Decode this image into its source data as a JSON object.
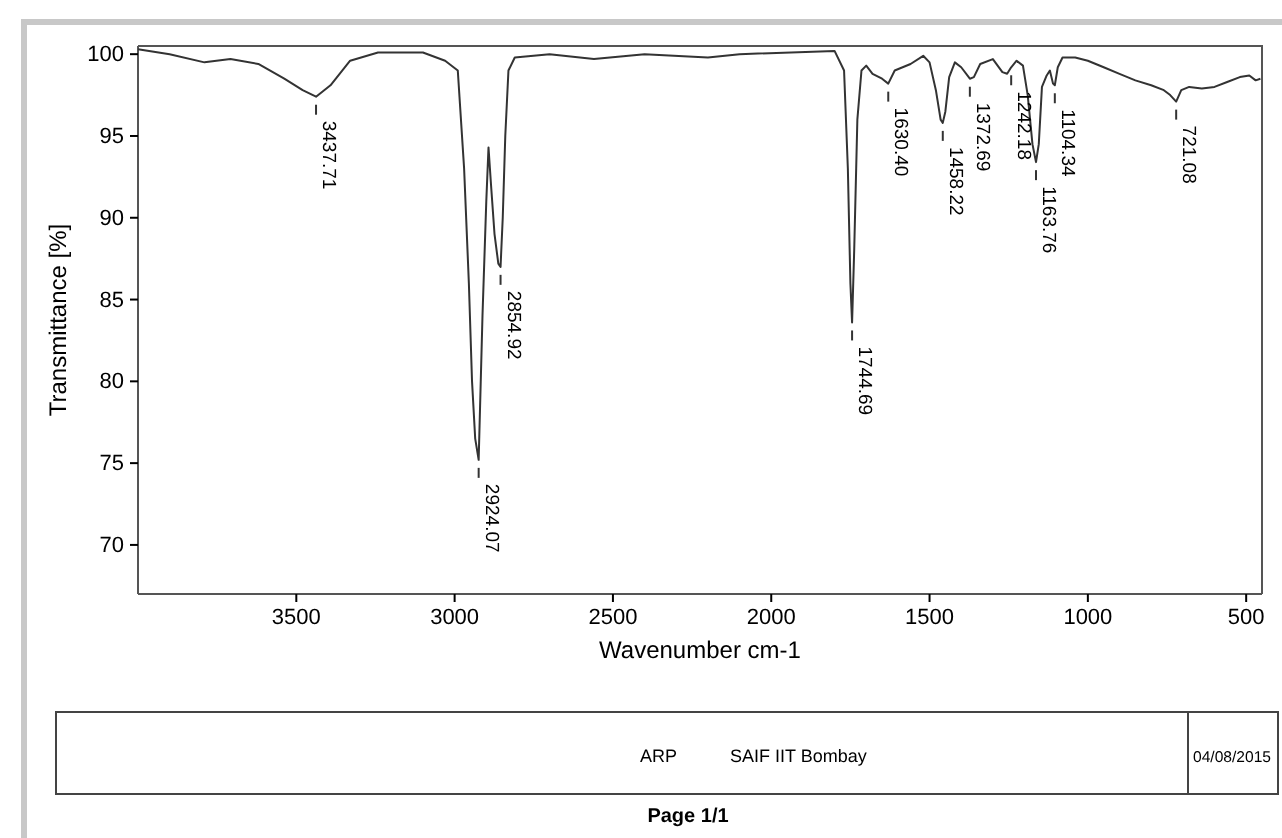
{
  "chart_data": {
    "type": "line",
    "xlabel": "Wavenumber cm-1",
    "ylabel": "Transmittance [%]",
    "xlim": [
      4000,
      450
    ],
    "ylim": [
      67,
      100.5
    ],
    "xticks": [
      3500,
      3000,
      2500,
      2000,
      1500,
      1000,
      500
    ],
    "yticks": [
      70,
      75,
      80,
      85,
      90,
      95,
      100
    ],
    "grid": false,
    "series": [
      {
        "color": "#333333",
        "x": [
          4000,
          3900,
          3790,
          3708,
          3620,
          3538,
          3480,
          3437.71,
          3392,
          3330,
          3242,
          3100,
          3030,
          2990,
          2970,
          2955,
          2945,
          2935,
          2924.07,
          2912,
          2900,
          2893,
          2885,
          2874,
          2862,
          2854.92,
          2848,
          2840,
          2830,
          2810,
          2700,
          2560,
          2400,
          2200,
          2100,
          1800,
          1770,
          1758,
          1750,
          1744.69,
          1738,
          1728,
          1715,
          1700,
          1680,
          1650,
          1630.4,
          1610,
          1560,
          1520,
          1500,
          1480,
          1465,
          1458.22,
          1450,
          1438,
          1420,
          1400,
          1372.69,
          1360,
          1340,
          1300,
          1270,
          1255,
          1242.18,
          1225,
          1205,
          1190,
          1175,
          1163.76,
          1155,
          1145,
          1130,
          1120,
          1110,
          1104.34,
          1095,
          1080,
          1040,
          1000,
          950,
          900,
          850,
          800,
          760,
          740,
          721.08,
          705,
          680,
          640,
          600,
          560,
          520,
          490,
          470,
          455
        ],
        "values": [
          100.3,
          100,
          99.5,
          99.7,
          99.4,
          98.5,
          97.8,
          97.4,
          98.1,
          99.6,
          100.1,
          100.1,
          99.6,
          99,
          93,
          86,
          80,
          76.5,
          75.2,
          84,
          91,
          94.3,
          92,
          89,
          87.2,
          87,
          90,
          95,
          99,
          99.8,
          100,
          99.7,
          100,
          99.8,
          100,
          100.2,
          99,
          93,
          86,
          83.6,
          88,
          96,
          99,
          99.3,
          98.8,
          98.5,
          98.2,
          99,
          99.4,
          99.9,
          99.5,
          97.8,
          96,
          95.8,
          96.5,
          98.6,
          99.5,
          99.2,
          98.5,
          98.6,
          99.4,
          99.7,
          98.9,
          98.8,
          99.2,
          99.6,
          99.3,
          97.5,
          94.5,
          93.4,
          94.5,
          98,
          98.7,
          99,
          98.2,
          98.1,
          99.2,
          99.8,
          99.8,
          99.6,
          99.2,
          98.8,
          98.4,
          98.1,
          97.8,
          97.5,
          97.1,
          97.8,
          98,
          97.9,
          98,
          98.3,
          98.6,
          98.7,
          98.4,
          98.5
        ]
      }
    ],
    "annotations": [
      {
        "text": "3437.71",
        "x": 3437.71,
        "y": 97.4
      },
      {
        "text": "2924.07",
        "x": 2924.07,
        "y": 75.2
      },
      {
        "text": "2854.92",
        "x": 2854.92,
        "y": 87
      },
      {
        "text": "1744.69",
        "x": 1744.69,
        "y": 83.6
      },
      {
        "text": "1630.40",
        "x": 1630.4,
        "y": 98.2
      },
      {
        "text": "1458.22",
        "x": 1458.22,
        "y": 95.8
      },
      {
        "text": "1372.69",
        "x": 1372.69,
        "y": 98.5
      },
      {
        "text": "1242.18",
        "x": 1242.18,
        "y": 99.2
      },
      {
        "text": "1163.76",
        "x": 1163.76,
        "y": 93.4
      },
      {
        "text": "1104.34",
        "x": 1104.34,
        "y": 98.1
      },
      {
        "text": "721.08",
        "x": 721.08,
        "y": 97.1
      },
      "ARP",
      "SAIF IIT Bombay",
      "04/08/2015",
      "Page 1/1"
    ]
  }
}
